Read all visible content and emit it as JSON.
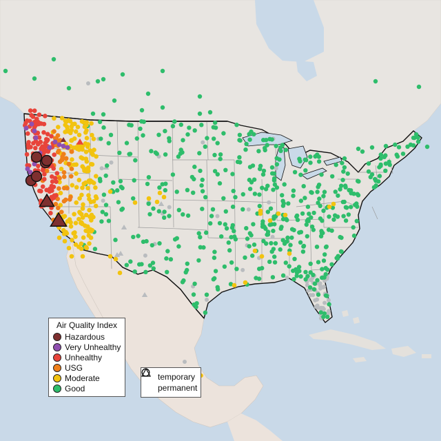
{
  "legend": {
    "title": "Air Quality Index",
    "categories": [
      {
        "label": "Hazardous",
        "color": "#7e2f2f"
      },
      {
        "label": "Very Unhealthy",
        "color": "#8f4fb0"
      },
      {
        "label": "Unhealthy",
        "color": "#e8443a"
      },
      {
        "label": "USG",
        "color": "#ef7f1a"
      },
      {
        "label": "Moderate",
        "color": "#f2c30f"
      },
      {
        "label": "Good",
        "color": "#2ebd6b"
      }
    ]
  },
  "shape_legend": {
    "temporary": "temporary",
    "permanent": "permanent"
  },
  "colors": {
    "water": "#c9d9e8",
    "land": "#e6e3df",
    "mexico_land": "#ece4de",
    "border": "#111111",
    "grey_monitor": "#b9bcbf"
  }
}
